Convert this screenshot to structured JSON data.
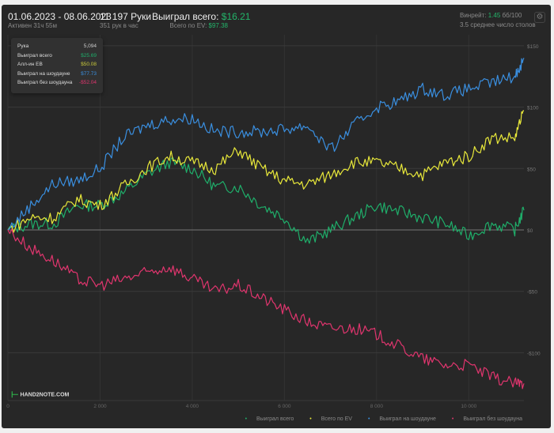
{
  "header": {
    "date_range": "01.06.2023 - 08.06.2023",
    "active": "Активен 31ч 55м",
    "hands": "11 197 Руки",
    "hands_per_hour": "351 рук в час",
    "won_label": "Выиграл всего:",
    "won_value": "$16.21",
    "ev_label": "Всего по EV:",
    "ev_value": "$97.38",
    "winrate_label": "Винрейт:",
    "winrate_value": "1.45",
    "winrate_unit": "бб/100",
    "tables": "3.5 среднее число столов"
  },
  "tooltip": {
    "rows": [
      {
        "label": "Рука",
        "value": "5,094"
      },
      {
        "label": "Выиграл всего",
        "value": "$25.69"
      },
      {
        "label": "Алл-ин EB",
        "value": "$50.08"
      },
      {
        "label": "Выиграл на шоудауне",
        "value": "$77.73"
      },
      {
        "label": "Выиграл без шоудауна",
        "value": "-$52.04"
      }
    ]
  },
  "logo": "HAND2NOTE.COM",
  "chart_data": {
    "type": "line",
    "x_ticks": [
      0,
      2000,
      4000,
      6000,
      8000,
      10000
    ],
    "x_tick_labels": [
      "0",
      "2 000",
      "4 000",
      "6 000",
      "8 000",
      "10 000"
    ],
    "y_ticks": [
      150,
      100,
      50,
      0,
      -50,
      -100
    ],
    "y_tick_labels": [
      "$150",
      "$100",
      "$50",
      "$0",
      "-$50",
      "-$100"
    ],
    "xlim": [
      0,
      11197
    ],
    "ylim": [
      -130,
      160
    ],
    "legend_position": "bottom-right",
    "x": [
      0,
      500,
      1000,
      1500,
      2000,
      2500,
      3000,
      3500,
      4000,
      4500,
      5000,
      5500,
      6000,
      6500,
      7000,
      7500,
      8000,
      8500,
      9000,
      9500,
      10000,
      10500,
      11000,
      11197
    ],
    "series": [
      {
        "name": "Выиграл всего",
        "color": "#1fae6a",
        "values": [
          0,
          5,
          5,
          20,
          20,
          30,
          45,
          55,
          50,
          35,
          35,
          20,
          10,
          -10,
          0,
          10,
          20,
          15,
          10,
          5,
          -5,
          5,
          0,
          16
        ]
      },
      {
        "name": "Всего по EV",
        "color": "#e8e83a",
        "values": [
          0,
          10,
          10,
          25,
          20,
          35,
          50,
          60,
          55,
          50,
          65,
          50,
          40,
          37,
          45,
          55,
          55,
          50,
          45,
          55,
          60,
          75,
          75,
          97
        ]
      },
      {
        "name": "Выиграл на шоудауне",
        "color": "#3a8fe0",
        "values": [
          0,
          20,
          38,
          40,
          50,
          75,
          85,
          90,
          91,
          80,
          80,
          80,
          82,
          85,
          65,
          85,
          100,
          105,
          115,
          110,
          115,
          120,
          125,
          140
        ]
      },
      {
        "name": "Выиграл без шоудауна",
        "color": "#e0356e",
        "values": [
          0,
          -15,
          -25,
          -40,
          -45,
          -40,
          -35,
          -30,
          -40,
          -50,
          -45,
          -55,
          -65,
          -75,
          -80,
          -80,
          -85,
          -95,
          -105,
          -110,
          -110,
          -120,
          -125,
          -125
        ]
      }
    ]
  }
}
